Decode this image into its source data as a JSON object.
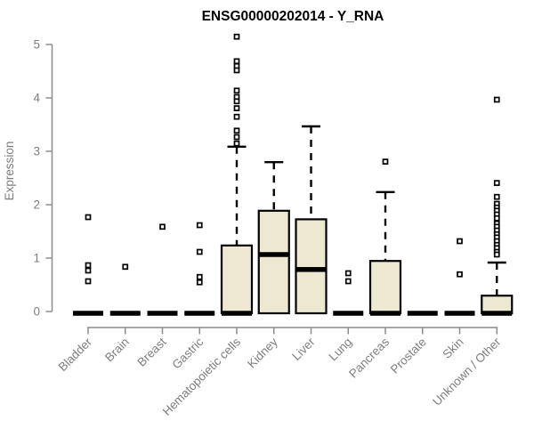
{
  "chart_data": {
    "type": "boxplot",
    "title": "ENSG00000202014 - Y_RNA",
    "ylabel": "Expression",
    "ylim": [
      0,
      5
    ],
    "yticks": [
      0,
      1,
      2,
      3,
      4,
      5
    ],
    "categories": [
      "Bladder",
      "Brain",
      "Breast",
      "Gastric",
      "Hematopoietic cells",
      "Kidney",
      "Liver",
      "Lung",
      "Pancreas",
      "Prostate",
      "Skin",
      "Unknown / Other"
    ],
    "boxes": [
      {
        "category": "Bladder",
        "q1": 0,
        "median": 0,
        "q3": 0,
        "whisker_low": 0,
        "whisker_high": 0,
        "outliers": [
          1.8,
          0.9,
          0.8,
          0.6
        ]
      },
      {
        "category": "Brain",
        "q1": 0,
        "median": 0,
        "q3": 0,
        "whisker_low": 0,
        "whisker_high": 0,
        "outliers": [
          0.87
        ]
      },
      {
        "category": "Breast",
        "q1": 0,
        "median": 0,
        "q3": 0,
        "whisker_low": 0,
        "whisker_high": 0,
        "outliers": [
          1.62
        ]
      },
      {
        "category": "Gastric",
        "q1": 0,
        "median": 0,
        "q3": 0,
        "whisker_low": 0,
        "whisker_high": 0,
        "outliers": [
          1.65,
          1.15,
          0.68,
          0.58
        ]
      },
      {
        "category": "Hematopoietic cells",
        "q1": 0,
        "median": 0,
        "q3": 1.27,
        "whisker_low": 0,
        "whisker_high": 3.12,
        "outliers": [
          5.18,
          4.72,
          4.63,
          4.55,
          4.17,
          4.05,
          3.97,
          3.84,
          3.68,
          3.42,
          3.3,
          3.18
        ]
      },
      {
        "category": "Kidney",
        "q1": 0,
        "median": 1.1,
        "q3": 1.92,
        "whisker_low": 0,
        "whisker_high": 2.83,
        "outliers": []
      },
      {
        "category": "Liver",
        "q1": 0,
        "median": 0.82,
        "q3": 1.76,
        "whisker_low": 0,
        "whisker_high": 3.5,
        "outliers": []
      },
      {
        "category": "Lung",
        "q1": 0,
        "median": 0,
        "q3": 0,
        "whisker_low": 0,
        "whisker_high": 0,
        "outliers": [
          0.75,
          0.6
        ]
      },
      {
        "category": "Pancreas",
        "q1": 0,
        "median": 0,
        "q3": 0.98,
        "whisker_low": 0,
        "whisker_high": 2.27,
        "outliers": [
          2.84
        ]
      },
      {
        "category": "Prostate",
        "q1": 0,
        "median": 0,
        "q3": 0,
        "whisker_low": 0,
        "whisker_high": 0,
        "outliers": []
      },
      {
        "category": "Skin",
        "q1": 0,
        "median": 0,
        "q3": 0,
        "whisker_low": 0,
        "whisker_high": 0,
        "outliers": [
          1.35,
          0.73
        ]
      },
      {
        "category": "Unknown / Other",
        "q1": 0,
        "median": 0,
        "q3": 0.33,
        "whisker_low": 0,
        "whisker_high": 0.95,
        "outliers": [
          4.0,
          2.44,
          2.18,
          2.05,
          1.98,
          1.92,
          1.85,
          1.78,
          1.68,
          1.62,
          1.55,
          1.48,
          1.42,
          1.35,
          1.28,
          1.22,
          1.15,
          1.1
        ]
      }
    ]
  },
  "style": {
    "box_fill": "#EDE8D1",
    "box_stroke": "#000000",
    "median_color": "#000000",
    "outlier_fill": "#FFFFFF",
    "axis_color": "#8B8B8B",
    "tick_label_color": "#7E7E7E",
    "title_color": "#000000",
    "background": "#FFFFFF"
  }
}
